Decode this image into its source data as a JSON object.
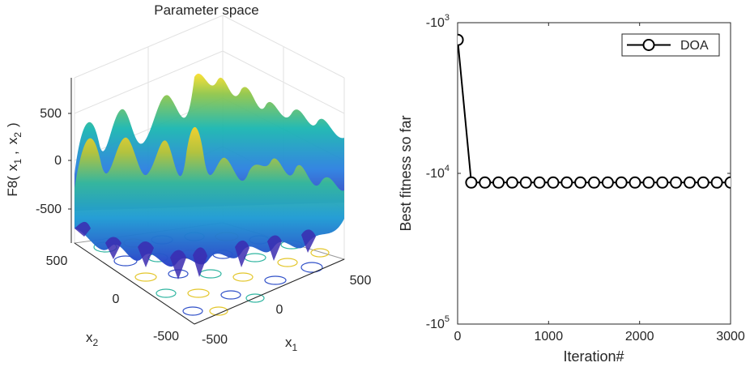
{
  "chart_data": [
    {
      "type": "surface",
      "title": "Parameter space",
      "function": "F8",
      "zlabel": {
        "prefix": "F8(",
        "x1": "x",
        "x1_sub": "1",
        "sep": ",",
        "x2": "x",
        "x2_sub": "2",
        "suffix": ")"
      },
      "xlabel": {
        "base": "x",
        "sub": "1"
      },
      "ylabel": {
        "base": "x",
        "sub": "2"
      },
      "x_ticks": [
        "-500",
        "0",
        "500"
      ],
      "y_ticks": [
        "-500",
        "0",
        "500"
      ],
      "z_ticks": [
        "-500",
        "0",
        "500"
      ],
      "xlim": [
        -500,
        500
      ],
      "ylim": [
        -500,
        500
      ],
      "zlim": [
        -800,
        800
      ],
      "colormap": "parula",
      "grid": true
    },
    {
      "type": "line",
      "title": "",
      "xlabel": "Iteration#",
      "ylabel": "Best fitness so far",
      "x_ticks": [
        "0",
        "1000",
        "2000",
        "3000"
      ],
      "y_ticks": [
        {
          "base": "-10",
          "exp": "3"
        },
        {
          "base": "-10",
          "exp": "4"
        },
        {
          "base": "-10",
          "exp": "5"
        }
      ],
      "xlim": [
        0,
        3000
      ],
      "ylim": [
        -100000,
        -1000
      ],
      "yscale": "log",
      "legend": {
        "position": "top-right",
        "entries": [
          "DOA"
        ]
      },
      "series": [
        {
          "name": "DOA",
          "color": "#000000",
          "marker": "circle",
          "x": [
            1,
            150,
            300,
            450,
            600,
            750,
            900,
            1050,
            1200,
            1350,
            1500,
            1650,
            1800,
            1950,
            2100,
            2250,
            2400,
            2550,
            2700,
            2850,
            3000
          ],
          "y": [
            -1300,
            -11500,
            -11500,
            -11500,
            -11500,
            -11500,
            -11500,
            -11500,
            -11500,
            -11500,
            -11500,
            -11500,
            -11500,
            -11500,
            -11500,
            -11500,
            -11500,
            -11500,
            -11500,
            -11500,
            -11500
          ]
        }
      ]
    }
  ]
}
